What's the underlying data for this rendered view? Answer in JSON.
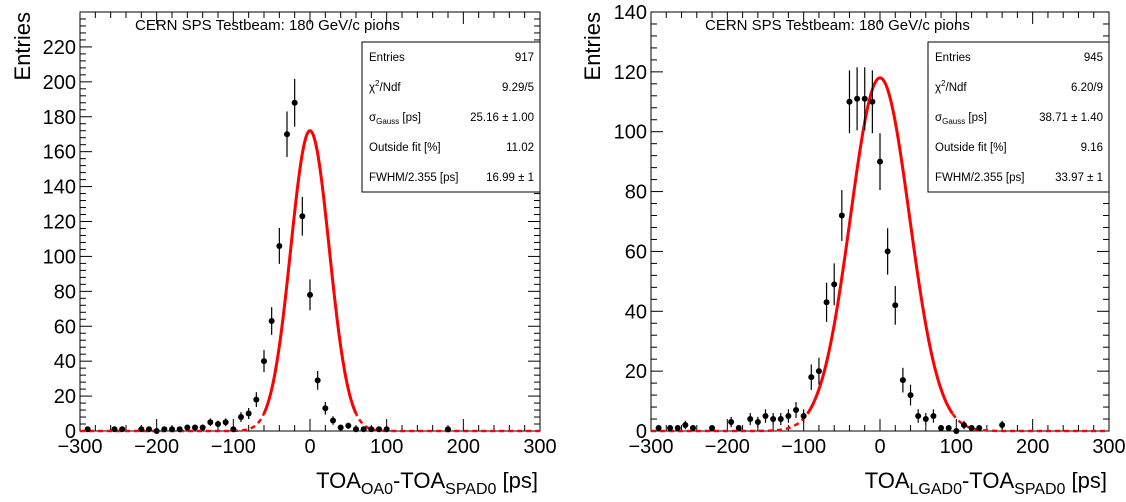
{
  "chart_data": [
    {
      "type": "scatter",
      "title": "CERN SPS Testbeam: 180 GeV/c pions",
      "xlabel": {
        "main1": "TOA",
        "sub1": "OA0",
        "dash": "-TOA",
        "sub2": "SPAD0",
        "unit": " [ps]"
      },
      "ylabel": "Entries",
      "xlim": [
        -300,
        300
      ],
      "ylim": [
        0,
        240
      ],
      "x_ticks": [
        "−300",
        "−200",
        "−100",
        "0",
        "100",
        "200",
        "300"
      ],
      "x_tick_values": [
        -300,
        -200,
        -100,
        0,
        100,
        200,
        300
      ],
      "y_ticks": [
        "0",
        "20",
        "40",
        "60",
        "80",
        "100",
        "120",
        "140",
        "160",
        "180",
        "200",
        "220"
      ],
      "y_tick_values": [
        0,
        20,
        40,
        60,
        80,
        100,
        120,
        140,
        160,
        180,
        200,
        220
      ],
      "series": [
        {
          "kind": "data-points-with-error-bars",
          "color": "#000000",
          "x": [
            -290,
            -255,
            -245,
            -220,
            -210,
            -200,
            -190,
            -180,
            -170,
            -160,
            -150,
            -140,
            -130,
            -120,
            -110,
            -100,
            -90,
            -80,
            -70,
            -60,
            -50,
            -40,
            -30,
            -20,
            -10,
            0,
            10,
            20,
            30,
            40,
            50,
            60,
            70,
            80,
            90,
            100,
            180
          ],
          "y": [
            1,
            1,
            1,
            1,
            1,
            0,
            1,
            1,
            1,
            2,
            2,
            2,
            5,
            4,
            5,
            1,
            8,
            10,
            18,
            40,
            63,
            106,
            170,
            188,
            123,
            78,
            29,
            13,
            6,
            2,
            3,
            1,
            1,
            1,
            1,
            1,
            1
          ]
        },
        {
          "kind": "gauss-fit-solid",
          "color": "#ff0000",
          "mean": 0,
          "amplitude": 172,
          "sigma": 25.16,
          "range": [
            -60,
            60
          ]
        },
        {
          "kind": "gauss-fit-dashed",
          "color": "#ff0000",
          "range": [
            -300,
            300
          ]
        }
      ],
      "stats": [
        {
          "label": "Entries",
          "value": "917"
        },
        {
          "label": "χ",
          "sup": "2",
          "label_rest": "/Ndf",
          "value": "9.29/5"
        },
        {
          "label": "σ",
          "sub": "Gauss",
          "label_rest": " [ps]",
          "value": "25.16 ± 1.00"
        },
        {
          "label": "Outside fit [%]",
          "value": "11.02"
        },
        {
          "label": "FWHM/2.355 [ps]",
          "value": "16.99 ± 1"
        }
      ],
      "grid": false,
      "stats_box_placement": "top-right"
    },
    {
      "type": "scatter",
      "title": "CERN SPS Testbeam: 180 GeV/c pions",
      "xlabel": {
        "main1": "TOA",
        "sub1": "LGAD0",
        "dash": "-TOA",
        "sub2": "SPAD0",
        "unit": " [ps]"
      },
      "ylabel": "Entries",
      "xlim": [
        -300,
        300
      ],
      "ylim": [
        0,
        140
      ],
      "x_ticks": [
        "−300",
        "−200",
        "−100",
        "0",
        "100",
        "200",
        "300"
      ],
      "x_tick_values": [
        -300,
        -200,
        -100,
        0,
        100,
        200,
        300
      ],
      "y_ticks": [
        "0",
        "20",
        "40",
        "60",
        "80",
        "100",
        "120",
        "140"
      ],
      "y_tick_values": [
        0,
        20,
        40,
        60,
        80,
        100,
        120,
        140
      ],
      "series": [
        {
          "kind": "data-points-with-error-bars",
          "color": "#000000",
          "x": [
            -290,
            -275,
            -265,
            -255,
            -245,
            -220,
            -195,
            -185,
            -170,
            -160,
            -150,
            -140,
            -130,
            -120,
            -110,
            -100,
            -90,
            -80,
            -70,
            -60,
            -50,
            -40,
            -30,
            -20,
            -10,
            0,
            10,
            20,
            30,
            40,
            50,
            60,
            70,
            80,
            90,
            100,
            110,
            120,
            130,
            160
          ],
          "y": [
            1,
            1,
            1,
            2,
            1,
            1,
            3,
            1,
            4,
            3,
            5,
            4,
            4,
            5,
            7,
            5,
            18,
            20,
            43,
            49,
            72,
            110,
            111,
            111,
            110,
            90,
            60,
            42,
            17,
            12,
            5,
            4,
            5,
            1,
            1,
            0,
            2,
            1,
            1,
            2
          ]
        },
        {
          "kind": "gauss-fit-solid",
          "color": "#ff0000",
          "mean": 0,
          "amplitude": 118,
          "sigma": 38.71,
          "range": [
            -95,
            95
          ]
        },
        {
          "kind": "gauss-fit-dashed",
          "color": "#ff0000",
          "range": [
            -300,
            300
          ]
        }
      ],
      "stats": [
        {
          "label": "Entries",
          "value": "945"
        },
        {
          "label": "χ",
          "sup": "2",
          "label_rest": "/Ndf",
          "value": "6.20/9"
        },
        {
          "label": "σ",
          "sub": "Gauss",
          "label_rest": " [ps]",
          "value": "38.71 ± 1.40"
        },
        {
          "label": "Outside fit [%]",
          "value": "9.16"
        },
        {
          "label": "FWHM/2.355 [ps]",
          "value": "33.97 ± 1"
        }
      ],
      "grid": false,
      "stats_box_placement": "top-right"
    }
  ]
}
